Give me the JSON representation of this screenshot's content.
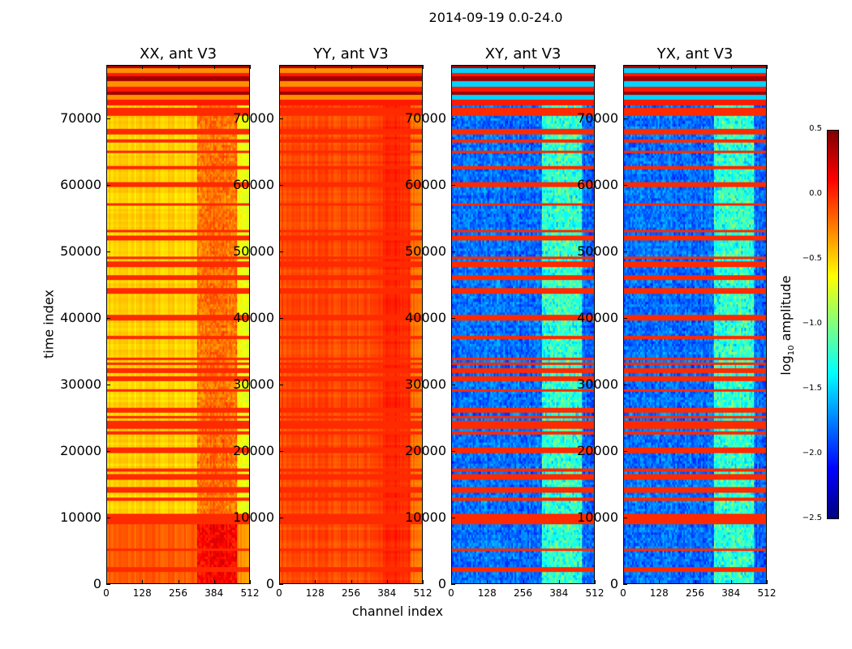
{
  "chart_data": {
    "type": "heatmap",
    "title": "2014-09-19 0.0-24.0",
    "xlabel": "channel index",
    "ylabel": "time index",
    "xlim": [
      0,
      512
    ],
    "ylim": [
      0,
      78000
    ],
    "xticks": [
      "0",
      "128",
      "256",
      "384",
      "512"
    ],
    "yticks": [
      "0",
      "10000",
      "20000",
      "30000",
      "40000",
      "50000",
      "60000",
      "70000"
    ],
    "panels": [
      {
        "title": "XX, ant V3",
        "typical_log10_amplitude": -0.5
      },
      {
        "title": "YY, ant V3",
        "typical_log10_amplitude": -0.1
      },
      {
        "title": "XY, ant V3",
        "typical_log10_amplitude": -1.8
      },
      {
        "title": "YX, ant V3",
        "typical_log10_amplitude": -1.8
      }
    ],
    "colorbar": {
      "label_main": "log",
      "label_sub": "10",
      "label_rest": " amplitude",
      "range": [
        -2.5,
        0.5
      ],
      "ticks": [
        "0.5",
        "0.0",
        "−0.5",
        "−1.0",
        "−1.5",
        "−2.0",
        "−2.5"
      ],
      "colormap": "jet"
    }
  }
}
